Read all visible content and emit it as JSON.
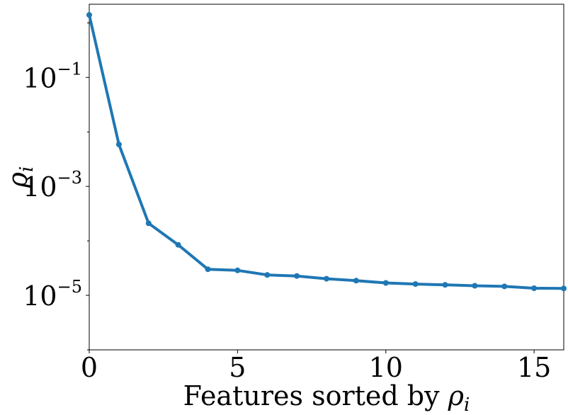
{
  "chart_data": {
    "type": "line",
    "xlabel_prefix": "Features sorted by ",
    "xlabel_symbol": "ρ",
    "xlabel_subscript": "i",
    "ylabel_symbol": "ρ",
    "ylabel_subscript": "i",
    "xlim": [
      0,
      16
    ],
    "ylim": [
      1e-06,
      2.2
    ],
    "yscale": "log",
    "x_ticks": [
      0,
      5,
      10,
      15
    ],
    "y_ticks": [
      {
        "value": 0.1,
        "base": "10",
        "exp": "−1"
      },
      {
        "value": 0.001,
        "base": "10",
        "exp": "−3"
      },
      {
        "value": 1e-05,
        "base": "10",
        "exp": "−5"
      }
    ],
    "grid": false,
    "series": [
      {
        "color": "#1f77b4",
        "x": [
          0,
          1,
          2,
          3,
          4,
          5,
          6,
          7,
          8,
          9,
          10,
          11,
          12,
          13,
          14,
          15,
          16
        ],
        "y": [
          1.4,
          0.0059,
          0.00021,
          8.45e-05,
          3.01e-05,
          2.87e-05,
          2.37e-05,
          2.27e-05,
          2.02e-05,
          1.86e-05,
          1.69e-05,
          1.61e-05,
          1.56e-05,
          1.5e-05,
          1.46e-05,
          1.35e-05,
          1.34e-05
        ]
      }
    ]
  }
}
